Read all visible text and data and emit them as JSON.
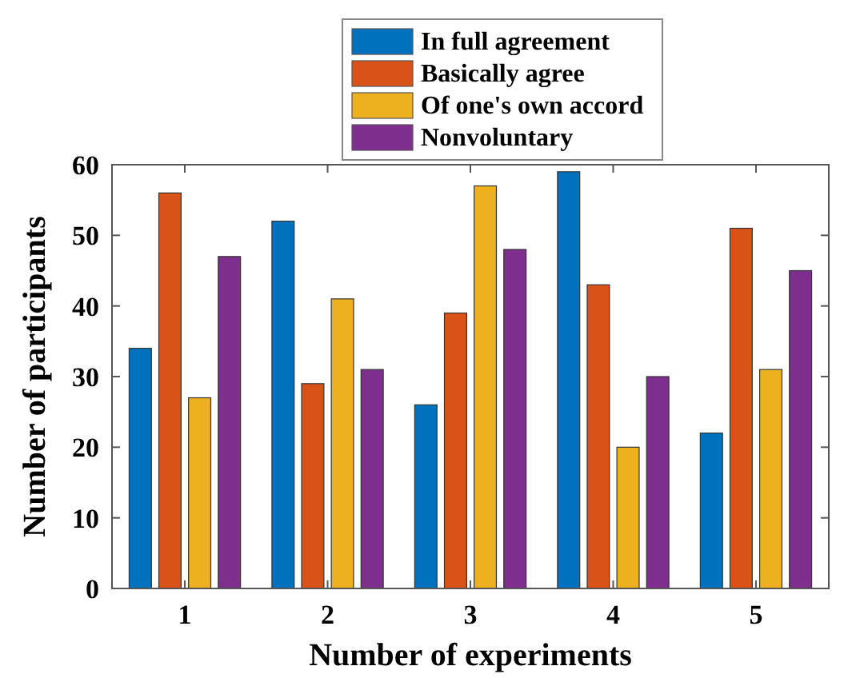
{
  "chart_data": {
    "type": "bar",
    "xlabel": "Number of experiments",
    "ylabel": "Number of participants",
    "categories": [
      "1",
      "2",
      "3",
      "4",
      "5"
    ],
    "series": [
      {
        "name": "In full agreement",
        "color": "#0072bd",
        "values": [
          34,
          52,
          26,
          59,
          22
        ]
      },
      {
        "name": "Basically agree",
        "color": "#d95319",
        "values": [
          56,
          29,
          39,
          43,
          51
        ]
      },
      {
        "name": "Of one's own accord",
        "color": "#edb120",
        "values": [
          27,
          41,
          57,
          20,
          31
        ]
      },
      {
        "name": "Nonvoluntary",
        "color": "#7e2f8e",
        "values": [
          47,
          31,
          48,
          30,
          45
        ]
      }
    ],
    "ylim": [
      0,
      60
    ],
    "yticks": [
      0,
      10,
      20,
      30,
      40,
      50,
      60
    ],
    "grid": false,
    "legend": "top"
  }
}
